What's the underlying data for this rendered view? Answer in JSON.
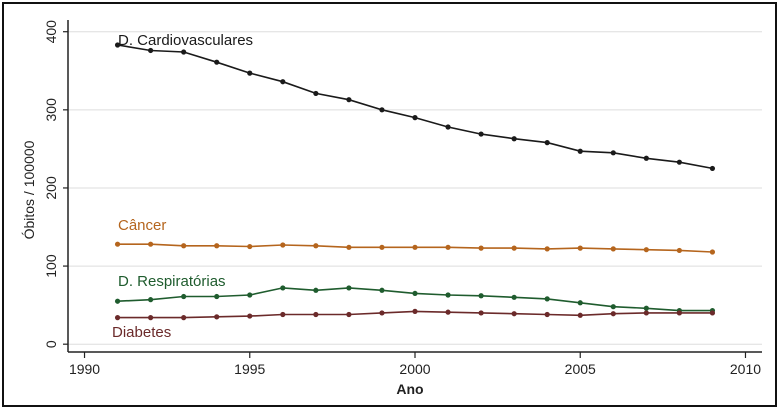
{
  "chart_data": {
    "type": "line",
    "title": "",
    "xlabel": "Ano",
    "ylabel": "Óbitos / 100000",
    "xlim": [
      1989.5,
      2010.5
    ],
    "ylim": [
      -10,
      415
    ],
    "xticks": [
      1990,
      1995,
      2000,
      2005,
      2010
    ],
    "yticks": [
      0,
      100,
      200,
      300,
      400
    ],
    "grid": true,
    "legend": "inline labels",
    "x": [
      1991,
      1992,
      1993,
      1994,
      1995,
      1996,
      1997,
      1998,
      1999,
      2000,
      2001,
      2002,
      2003,
      2004,
      2005,
      2006,
      2007,
      2008,
      2009
    ],
    "series": [
      {
        "name": "D. Cardiovasculares",
        "color": "#1a1a1a",
        "values": [
          383,
          376,
          374,
          361,
          347,
          336,
          321,
          313,
          300,
          290,
          278,
          269,
          263,
          258,
          247,
          245,
          238,
          233,
          225
        ]
      },
      {
        "name": "Câncer",
        "color": "#b5651d",
        "values": [
          128,
          128,
          126,
          126,
          125,
          127,
          126,
          124,
          124,
          124,
          124,
          123,
          123,
          122,
          123,
          122,
          121,
          120,
          118
        ]
      },
      {
        "name": "D. Respiratórias",
        "color": "#1f5c2e",
        "values": [
          55,
          57,
          61,
          61,
          63,
          72,
          69,
          72,
          69,
          65,
          63,
          62,
          60,
          58,
          53,
          48,
          46,
          43,
          43
        ]
      },
      {
        "name": "Diabetes",
        "color": "#6b2a2a",
        "values": [
          34,
          34,
          34,
          35,
          36,
          38,
          38,
          38,
          40,
          42,
          41,
          40,
          39,
          38,
          37,
          39,
          40,
          40,
          40
        ]
      }
    ]
  }
}
